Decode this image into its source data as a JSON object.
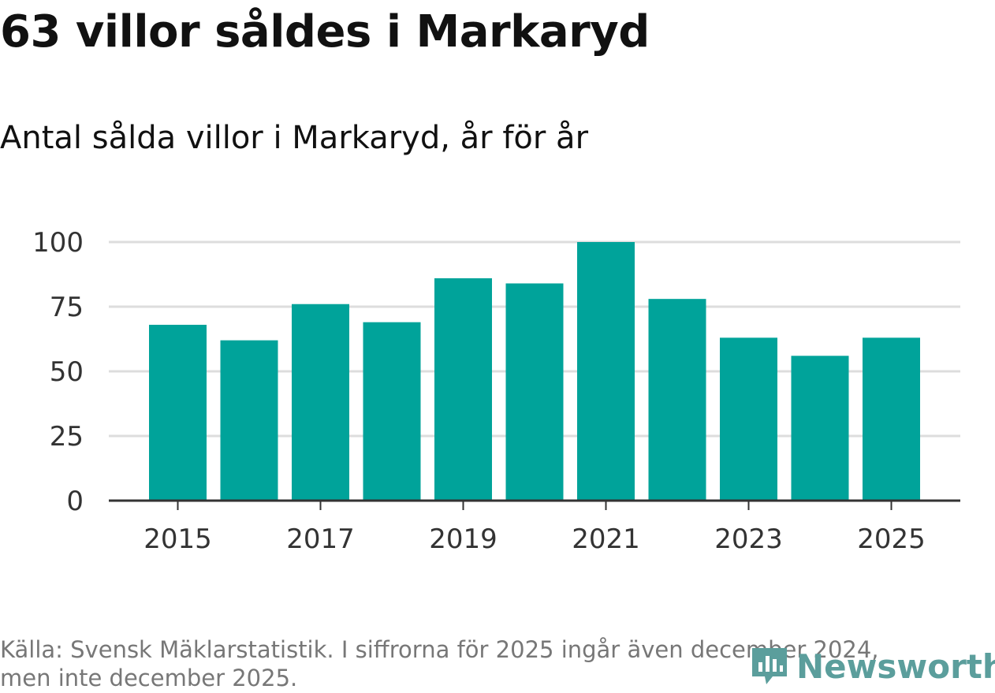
{
  "header": {
    "title": "63 villor såldes i Markaryd",
    "subtitle": "Antal sålda villor i Markaryd, år för år"
  },
  "footer": {
    "source_line1": "Källa: Svensk Mäklarstatistik. I siffrorna för 2025 ingår även december 2024,",
    "source_line2": "men inte december 2025.",
    "brand": "Newsworthy",
    "brand_icon": "newsworthy-logo-icon"
  },
  "colors": {
    "bar": "#00a39a",
    "grid": "#dddddd",
    "axis": "#333333",
    "brand": "#5b9e9c"
  },
  "chart_data": {
    "type": "bar",
    "title": "Antal sålda villor i Markaryd, år för år",
    "xlabel": "",
    "ylabel": "",
    "categories": [
      "2015",
      "2016",
      "2017",
      "2018",
      "2019",
      "2020",
      "2021",
      "2022",
      "2023",
      "2024",
      "2025"
    ],
    "values": [
      68,
      62,
      76,
      69,
      86,
      84,
      100,
      78,
      63,
      56,
      63
    ],
    "ylim": [
      0,
      100
    ],
    "yticks": [
      0,
      25,
      50,
      75,
      100
    ],
    "xtick_labels": [
      "2015",
      "2017",
      "2019",
      "2021",
      "2023",
      "2025"
    ],
    "grid": true,
    "legend": "none"
  }
}
